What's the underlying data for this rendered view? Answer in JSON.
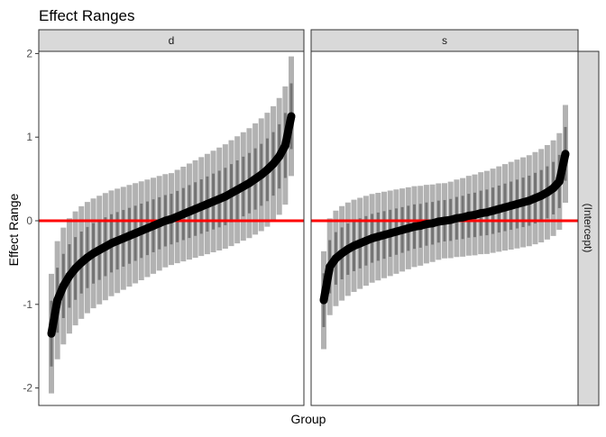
{
  "chart_data": {
    "type": "scatter",
    "title": "Effect Ranges",
    "xlabel": "Group",
    "ylabel": "Effect Range",
    "ylim": [
      -2.2,
      2.05
    ],
    "yticks": [
      "2",
      "1",
      "0",
      "-1",
      "-2"
    ],
    "ytick_values": [
      2,
      1,
      0,
      -1,
      -2
    ],
    "reference_line": {
      "y": 0,
      "color": "#ff0000"
    },
    "row_strip": "(Intercept)",
    "grid": false,
    "colors": {
      "point": "#000000",
      "interval": "#000000",
      "strip": "#d9d9d9"
    },
    "panels": [
      {
        "strip": "d",
        "interval_half_width": 0.55,
        "estimate": [
          -1.35,
          -0.95,
          -0.78,
          -0.66,
          -0.57,
          -0.5,
          -0.44,
          -0.39,
          -0.35,
          -0.31,
          -0.27,
          -0.24,
          -0.21,
          -0.18,
          -0.15,
          -0.12,
          -0.09,
          -0.06,
          -0.03,
          0.0,
          0.02,
          0.05,
          0.08,
          0.11,
          0.14,
          0.17,
          0.2,
          0.23,
          0.26,
          0.29,
          0.33,
          0.37,
          0.41,
          0.45,
          0.5,
          0.55,
          0.61,
          0.68,
          0.77,
          0.9,
          1.25
        ]
      },
      {
        "strip": "s",
        "interval_half_width": 0.45,
        "estimate": [
          -0.95,
          -0.55,
          -0.45,
          -0.39,
          -0.34,
          -0.3,
          -0.27,
          -0.24,
          -0.21,
          -0.19,
          -0.17,
          -0.15,
          -0.13,
          -0.11,
          -0.09,
          -0.07,
          -0.06,
          -0.04,
          -0.03,
          -0.01,
          0.0,
          0.01,
          0.03,
          0.04,
          0.06,
          0.07,
          0.09,
          0.1,
          0.12,
          0.14,
          0.16,
          0.18,
          0.2,
          0.22,
          0.24,
          0.27,
          0.3,
          0.34,
          0.39,
          0.47,
          0.8
        ]
      }
    ]
  }
}
